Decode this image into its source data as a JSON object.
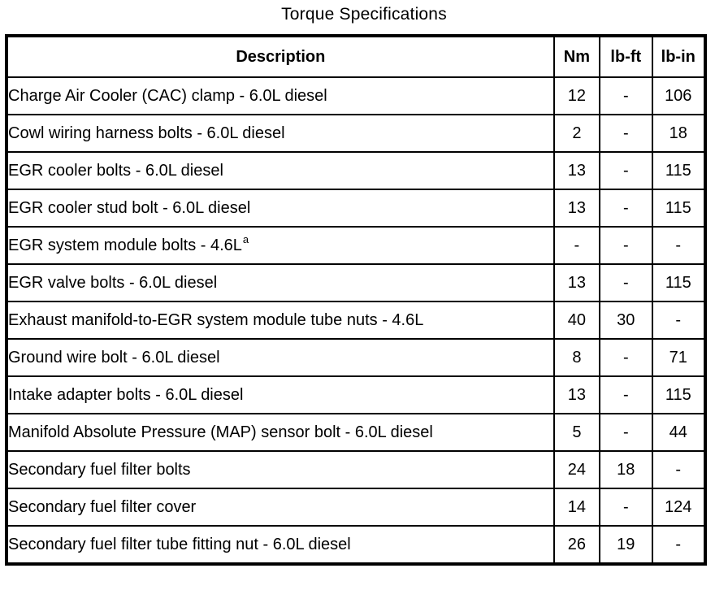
{
  "page": {
    "title": "Torque Specifications"
  },
  "table": {
    "columns": {
      "description": "Description",
      "nm": "Nm",
      "lb_ft": "lb-ft",
      "lb_in": "lb-in"
    },
    "rows": [
      {
        "description": "Charge Air Cooler (CAC) clamp - 6.0L diesel",
        "sup": "",
        "nm": "12",
        "lb_ft": "-",
        "lb_in": "106"
      },
      {
        "description": "Cowl wiring harness bolts - 6.0L diesel",
        "sup": "",
        "nm": "2",
        "lb_ft": "-",
        "lb_in": "18"
      },
      {
        "description": "EGR cooler bolts - 6.0L diesel",
        "sup": "",
        "nm": "13",
        "lb_ft": "-",
        "lb_in": "115"
      },
      {
        "description": "EGR cooler stud bolt - 6.0L diesel",
        "sup": "",
        "nm": "13",
        "lb_ft": "-",
        "lb_in": "115"
      },
      {
        "description": "EGR system module bolts - 4.6L",
        "sup": "a",
        "nm": "-",
        "lb_ft": "-",
        "lb_in": "-"
      },
      {
        "description": "EGR valve bolts - 6.0L diesel",
        "sup": "",
        "nm": "13",
        "lb_ft": "-",
        "lb_in": "115"
      },
      {
        "description": "Exhaust manifold-to-EGR system module tube nuts - 4.6L",
        "sup": "",
        "nm": "40",
        "lb_ft": "30",
        "lb_in": "-"
      },
      {
        "description": "Ground wire bolt - 6.0L diesel",
        "sup": "",
        "nm": "8",
        "lb_ft": "-",
        "lb_in": "71"
      },
      {
        "description": "Intake adapter bolts - 6.0L diesel",
        "sup": "",
        "nm": "13",
        "lb_ft": "-",
        "lb_in": "115"
      },
      {
        "description": "Manifold Absolute Pressure (MAP) sensor bolt - 6.0L diesel",
        "sup": "",
        "nm": "5",
        "lb_ft": "-",
        "lb_in": "44"
      },
      {
        "description": "Secondary fuel filter bolts",
        "sup": "",
        "nm": "24",
        "lb_ft": "18",
        "lb_in": "-"
      },
      {
        "description": "Secondary fuel filter cover",
        "sup": "",
        "nm": "14",
        "lb_ft": "-",
        "lb_in": "124"
      },
      {
        "description": "Secondary fuel filter tube fitting nut - 6.0L diesel",
        "sup": "",
        "nm": "26",
        "lb_ft": "19",
        "lb_in": "-"
      }
    ]
  }
}
